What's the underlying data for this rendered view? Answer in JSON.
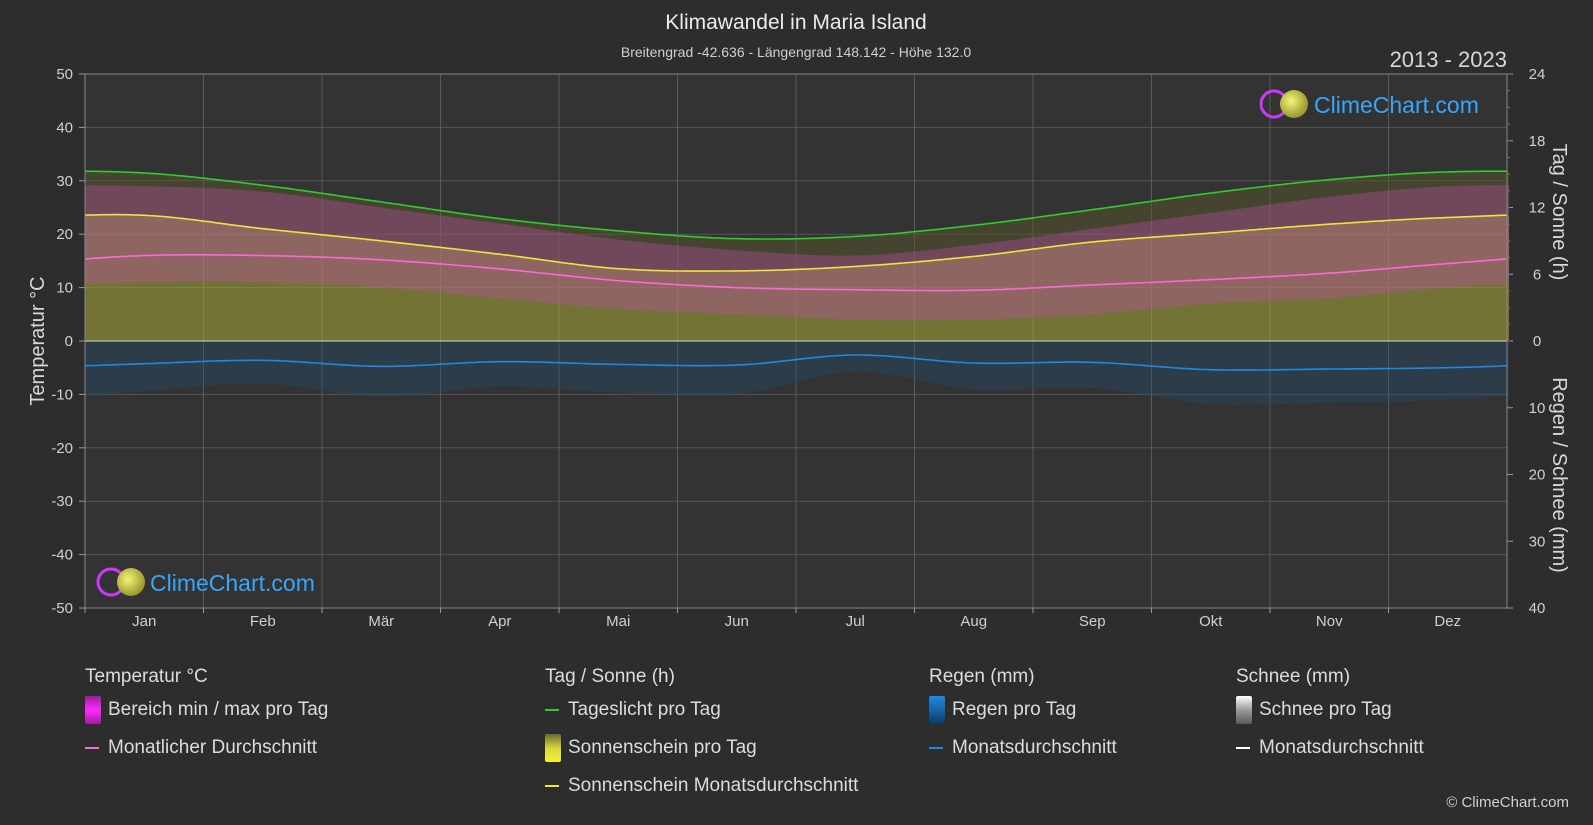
{
  "header": {
    "title": "Klimawandel in Maria Island",
    "subtitle": "Breitengrad -42.636 - Längengrad 148.142 - Höhe 132.0",
    "years": "2013 - 2023"
  },
  "logo_text": "ClimeChart.com",
  "copyright": "© ClimeChart.com",
  "chart_data": {
    "type": "line",
    "categories": [
      "Jan",
      "Feb",
      "Mär",
      "Apr",
      "Mai",
      "Jun",
      "Jul",
      "Aug",
      "Sep",
      "Okt",
      "Nov",
      "Dez"
    ],
    "left_axis": {
      "label": "Temperatur °C",
      "range": [
        -50,
        50
      ],
      "ticks": [
        50,
        40,
        30,
        20,
        10,
        0,
        -10,
        -20,
        -30,
        -40,
        -50
      ]
    },
    "right_axis_top": {
      "label": "Tag / Sonne (h)",
      "range": [
        0,
        24
      ],
      "ticks": [
        24,
        18,
        12,
        6,
        0
      ]
    },
    "right_axis_bottom": {
      "label": "Regen / Schnee (mm)",
      "range": [
        0,
        40
      ],
      "ticks": [
        10,
        20,
        30,
        40
      ]
    },
    "grid": true,
    "series": [
      {
        "name": "Tageslicht pro Tag",
        "axis": "sun_h",
        "values": [
          15.1,
          14.0,
          12.5,
          11.0,
          9.9,
          9.2,
          9.4,
          10.4,
          11.8,
          13.3,
          14.5,
          15.2
        ]
      },
      {
        "name": "Sonnenschein Monatsdurchschnitt",
        "axis": "sun_h",
        "values": [
          11.3,
          10.1,
          9.0,
          7.8,
          6.5,
          6.3,
          6.7,
          7.6,
          8.9,
          9.7,
          10.5,
          11.1
        ]
      },
      {
        "name": "Monatlicher Durchschnitt",
        "axis": "temp_c",
        "values": [
          16.0,
          16.0,
          15.2,
          13.5,
          11.3,
          10.0,
          9.6,
          9.5,
          10.5,
          11.5,
          12.7,
          14.5
        ]
      },
      {
        "name": "Regen Monatsdurchschnitt",
        "axis": "precip_mm",
        "values": [
          3.4,
          2.9,
          3.8,
          3.1,
          3.5,
          3.6,
          2.1,
          3.3,
          3.2,
          4.3,
          4.2,
          4.0
        ]
      }
    ],
    "temp_range_band": {
      "max": [
        29,
        28,
        25,
        22,
        19,
        17,
        16,
        18,
        21,
        24,
        27,
        29
      ],
      "min": [
        11,
        11,
        10,
        8,
        6,
        5,
        4,
        4,
        5,
        7,
        8,
        10
      ]
    },
    "colors": {
      "daylight": "#2ecc2e",
      "sunshine_avg": "#e8e83a",
      "sunshine_band": "#a8a838",
      "temp_avg": "#ff66dd",
      "temp_band": "#c04ab0",
      "rain": "#1e88e5",
      "snow": "#ffffff",
      "background": "#2d2d2d"
    }
  },
  "legend": {
    "groups": [
      {
        "title": "Temperatur °C",
        "items": [
          {
            "label": "Bereich min / max pro Tag",
            "kind": "box",
            "color": "#e01ee0"
          },
          {
            "label": "Monatlicher Durchschnitt",
            "kind": "line",
            "color": "#ff66dd"
          }
        ]
      },
      {
        "title": "Tag / Sonne (h)",
        "items": [
          {
            "label": "Tageslicht pro Tag",
            "kind": "line",
            "color": "#2ecc2e"
          },
          {
            "label": "Sonnenschein pro Tag",
            "kind": "box",
            "color": "#d6d63a"
          },
          {
            "label": "Sonnenschein Monatsdurchschnitt",
            "kind": "line",
            "color": "#e8e83a"
          }
        ]
      },
      {
        "title": "Regen (mm)",
        "items": [
          {
            "label": "Regen pro Tag",
            "kind": "box",
            "color": "#1e88e5"
          },
          {
            "label": "Monatsdurchschnitt",
            "kind": "line",
            "color": "#1e88e5"
          }
        ]
      },
      {
        "title": "Schnee (mm)",
        "items": [
          {
            "label": "Schnee pro Tag",
            "kind": "box",
            "color": "#e0e0e0"
          },
          {
            "label": "Monatsdurchschnitt",
            "kind": "line",
            "color": "#ffffff"
          }
        ]
      }
    ]
  }
}
